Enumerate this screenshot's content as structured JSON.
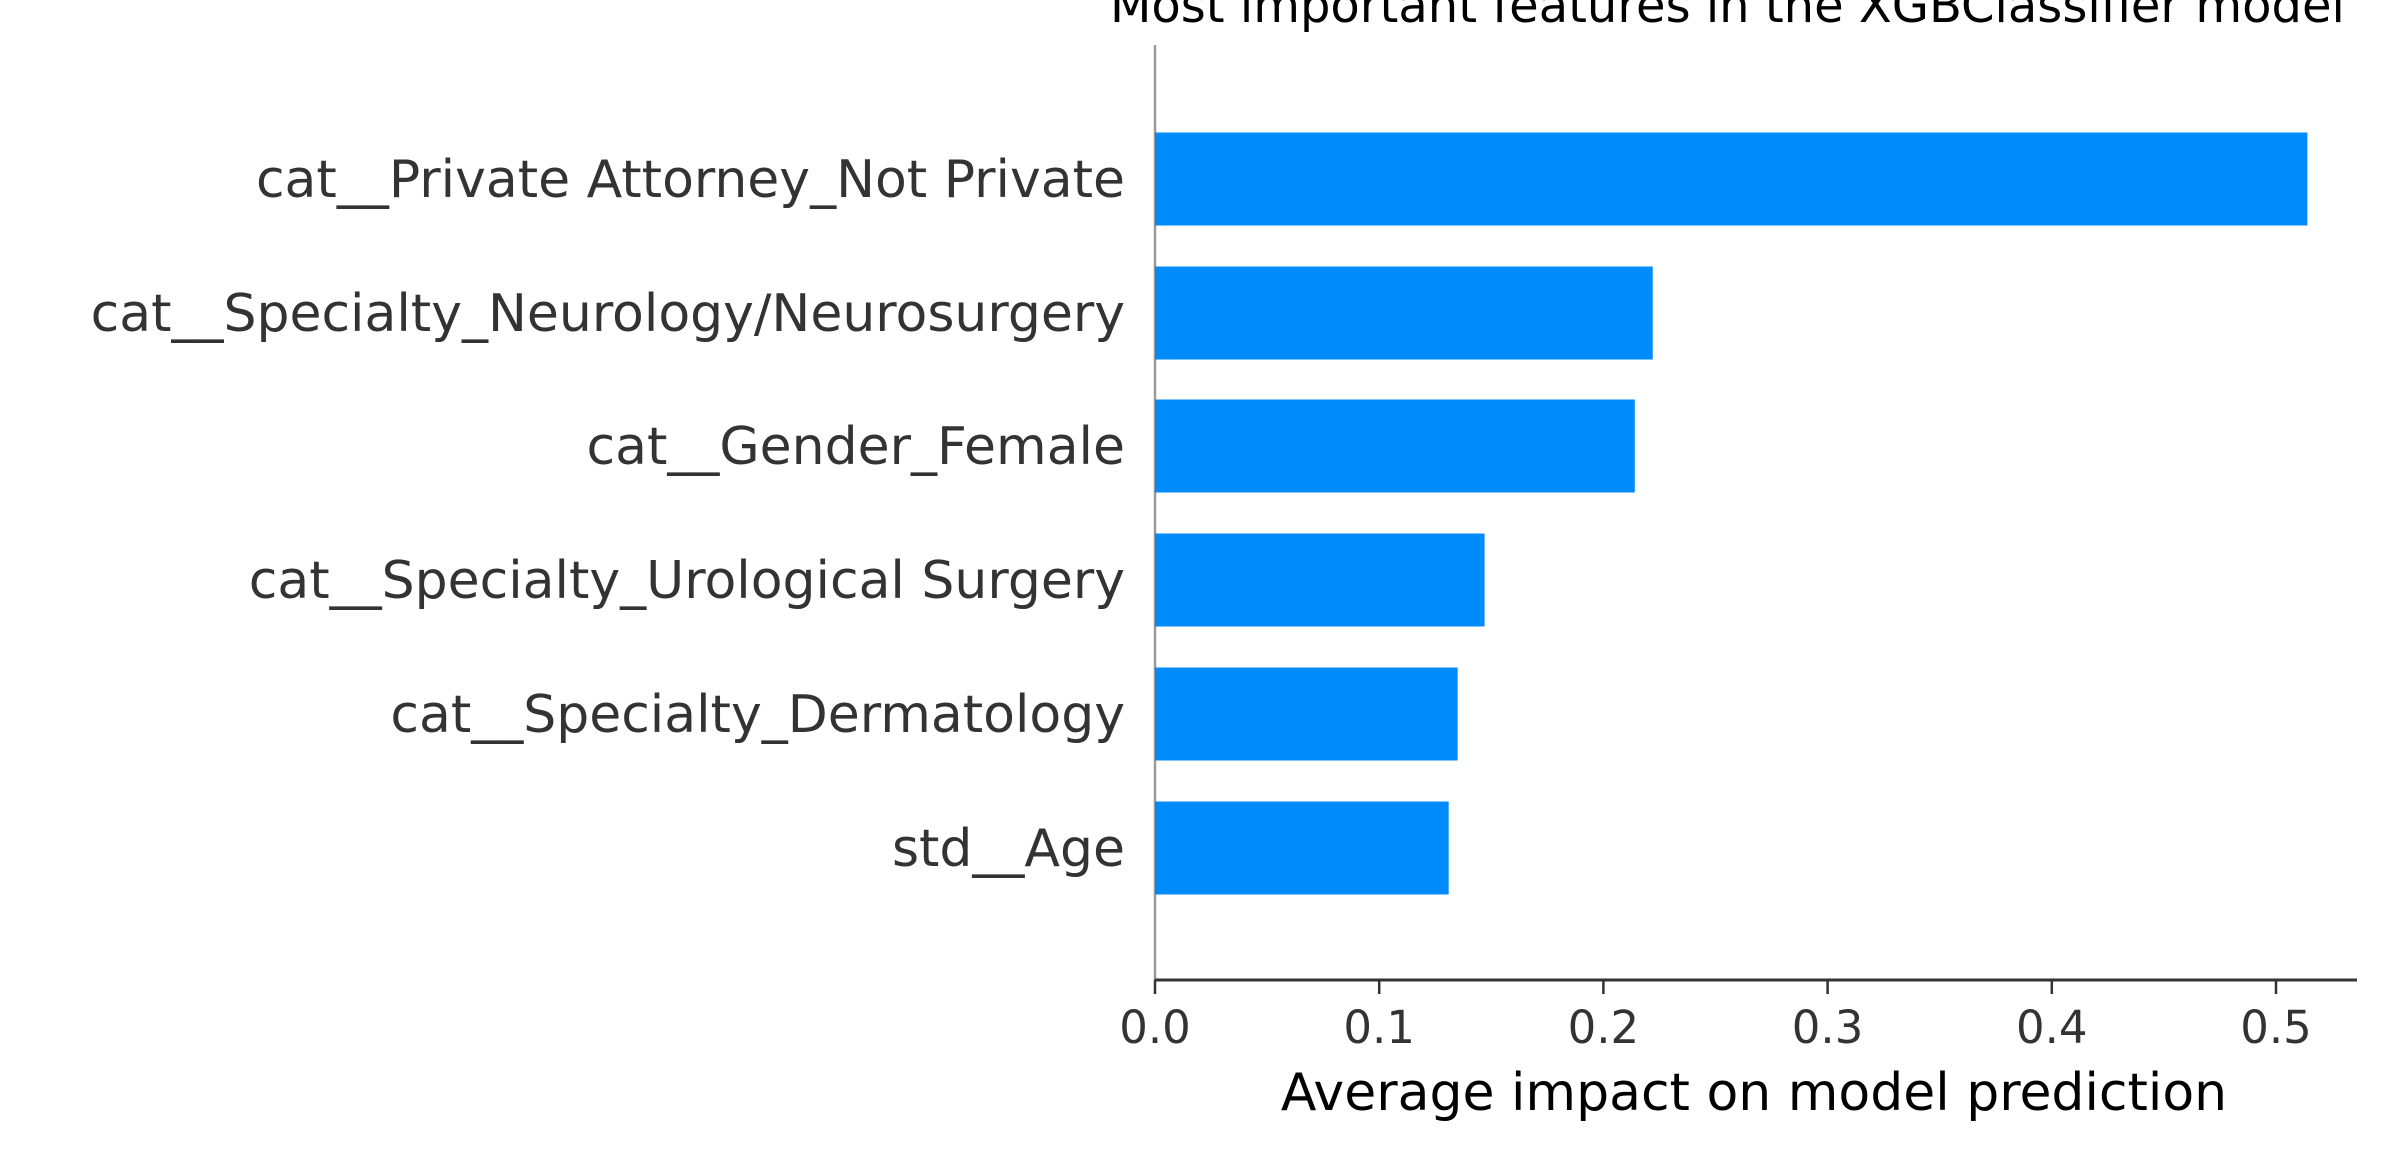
{
  "chart_data": {
    "type": "bar",
    "orientation": "horizontal",
    "title": "Most important features in the XGBClassifier model",
    "xlabel": "Average impact on model prediction",
    "ylabel": "",
    "categories": [
      "cat__Private Attorney_Not Private",
      "cat__Specialty_Neurology/Neurosurgery",
      "cat__Gender_Female",
      "cat__Specialty_Urological Surgery",
      "cat__Specialty_Dermatology",
      "std__Age"
    ],
    "values": [
      0.514,
      0.222,
      0.214,
      0.147,
      0.135,
      0.131
    ],
    "xlim": [
      0,
      0.54
    ],
    "xticks": [
      "0.0",
      "0.1",
      "0.2",
      "0.3",
      "0.4",
      "0.5"
    ],
    "grid": false,
    "bar_color": "#008bfb",
    "axis_color": "#333333",
    "zero_line_color": "#999999"
  }
}
